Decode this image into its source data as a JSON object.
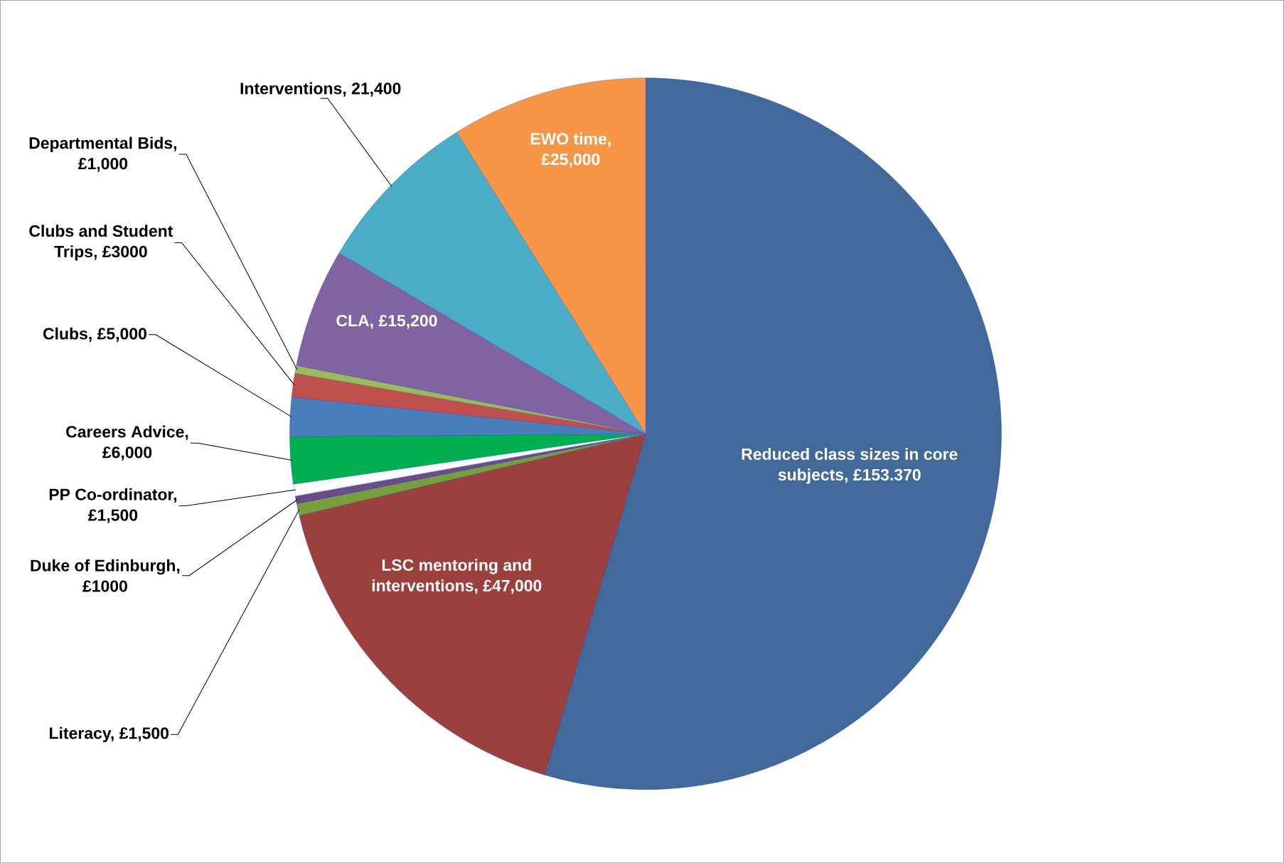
{
  "chart_data": {
    "type": "pie",
    "categories": [
      "Reduced class sizes in core subjects,  £153.370",
      "LSC mentoring and interventions,  £47,000",
      "Literacy,  £1,500",
      "Duke of Edinburgh, £1000",
      "PP Co-ordinator, £1,500",
      "Careers Advice, £6,000",
      "Clubs,  £5,000",
      "Clubs and Student Trips,  £3000",
      "Departmental Bids, £1,000",
      "CLA,  £15,200",
      "Interventions, 21,400",
      "EWO time, £25,000"
    ],
    "values": [
      153370,
      47000,
      1500,
      1000,
      1500,
      6000,
      5000,
      3000,
      1000,
      15200,
      21400,
      25000
    ],
    "colors": [
      "#41699a",
      "#9c403d",
      "#77a03d",
      "#684d87",
      "#ffffff",
      "#00b050",
      "#4a7ebb",
      "#c0504d",
      "#9bbb59",
      "#8064a2",
      "#4bacc6",
      "#f79646"
    ]
  }
}
